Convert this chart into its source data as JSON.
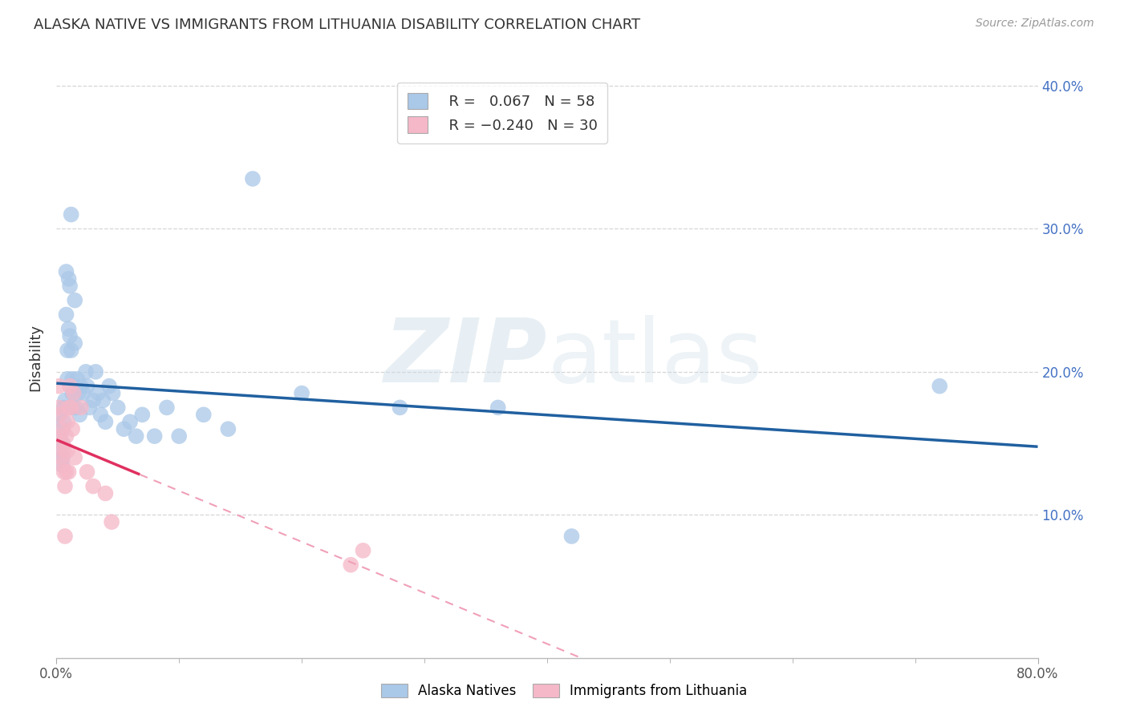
{
  "title": "ALASKA NATIVE VS IMMIGRANTS FROM LITHUANIA DISABILITY CORRELATION CHART",
  "source": "Source: ZipAtlas.com",
  "ylabel": "Disability",
  "xlim": [
    0.0,
    0.8
  ],
  "ylim": [
    0.0,
    0.42
  ],
  "yticks": [
    0.1,
    0.2,
    0.3,
    0.4
  ],
  "blue_R": 0.067,
  "blue_N": 58,
  "pink_R": -0.24,
  "pink_N": 30,
  "blue_color": "#aac8e8",
  "pink_color": "#f5b8c8",
  "blue_line_color": "#2060a0",
  "pink_line_solid_color": "#e03060",
  "pink_line_dash_color": "#f0a0b8",
  "watermark_zip": "ZIP",
  "watermark_atlas": "atlas",
  "legend_blue_label": "Alaska Natives",
  "legend_pink_label": "Immigrants from Lithuania",
  "background_color": "#ffffff",
  "grid_color": "#cccccc",
  "blue_scatter_x": [
    0.002,
    0.003,
    0.004,
    0.004,
    0.005,
    0.005,
    0.005,
    0.006,
    0.006,
    0.007,
    0.008,
    0.008,
    0.009,
    0.009,
    0.01,
    0.01,
    0.011,
    0.011,
    0.012,
    0.012,
    0.013,
    0.013,
    0.014,
    0.015,
    0.015,
    0.016,
    0.017,
    0.018,
    0.019,
    0.02,
    0.022,
    0.024,
    0.025,
    0.027,
    0.03,
    0.032,
    0.034,
    0.036,
    0.038,
    0.04,
    0.043,
    0.046,
    0.05,
    0.055,
    0.06,
    0.065,
    0.07,
    0.08,
    0.09,
    0.1,
    0.12,
    0.14,
    0.16,
    0.2,
    0.28,
    0.36,
    0.42,
    0.72
  ],
  "blue_scatter_y": [
    0.17,
    0.155,
    0.145,
    0.135,
    0.16,
    0.15,
    0.14,
    0.175,
    0.165,
    0.18,
    0.27,
    0.24,
    0.215,
    0.195,
    0.265,
    0.23,
    0.26,
    0.225,
    0.31,
    0.215,
    0.195,
    0.185,
    0.175,
    0.25,
    0.22,
    0.175,
    0.195,
    0.185,
    0.17,
    0.19,
    0.185,
    0.2,
    0.19,
    0.175,
    0.18,
    0.2,
    0.185,
    0.17,
    0.18,
    0.165,
    0.19,
    0.185,
    0.175,
    0.16,
    0.165,
    0.155,
    0.17,
    0.155,
    0.175,
    0.155,
    0.17,
    0.16,
    0.335,
    0.185,
    0.175,
    0.175,
    0.085,
    0.19
  ],
  "pink_scatter_x": [
    0.002,
    0.002,
    0.003,
    0.003,
    0.004,
    0.004,
    0.005,
    0.005,
    0.006,
    0.006,
    0.007,
    0.007,
    0.008,
    0.008,
    0.009,
    0.009,
    0.01,
    0.01,
    0.011,
    0.012,
    0.013,
    0.014,
    0.015,
    0.02,
    0.025,
    0.03,
    0.04,
    0.045,
    0.24,
    0.25
  ],
  "pink_scatter_y": [
    0.19,
    0.175,
    0.17,
    0.155,
    0.16,
    0.14,
    0.15,
    0.135,
    0.145,
    0.13,
    0.12,
    0.085,
    0.155,
    0.13,
    0.165,
    0.145,
    0.175,
    0.13,
    0.19,
    0.175,
    0.16,
    0.185,
    0.14,
    0.175,
    0.13,
    0.12,
    0.115,
    0.095,
    0.065,
    0.075
  ]
}
